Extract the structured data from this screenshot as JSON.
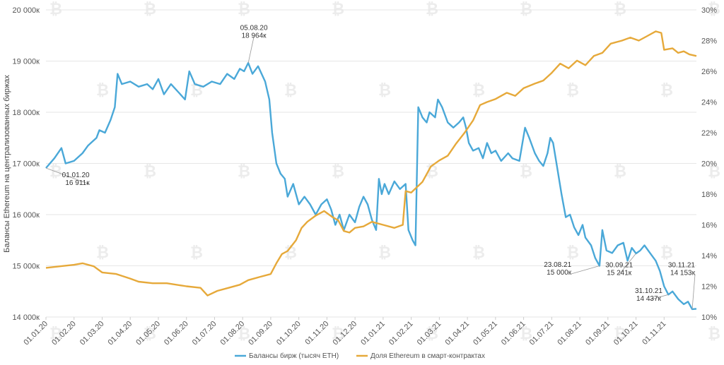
{
  "chart_data": {
    "type": "line",
    "ylabel": "Балансы Ethereum на централизованных биржах",
    "y_left_ticks": [
      "14 000к",
      "15 000к",
      "16 000к",
      "17 000к",
      "18 000к",
      "19 000к",
      "20 000к"
    ],
    "y_left_range": [
      14000,
      20000
    ],
    "y_right_ticks": [
      "10%",
      "12%",
      "14%",
      "16%",
      "18%",
      "20%",
      "22%",
      "24%",
      "26%",
      "28%",
      "30%"
    ],
    "y_right_range": [
      10,
      30
    ],
    "x_tick_labels": [
      "01.01.20",
      "01.02.20",
      "01.03.20",
      "01.04.20",
      "01.05.20",
      "01.06.20",
      "01.07.20",
      "01.08.20",
      "01.09.20",
      "01.10.20",
      "01.11.20",
      "01.12.20",
      "01.01.21",
      "01.02.21",
      "01.03.21",
      "01.04.21",
      "01.05.21",
      "01.06.21",
      "01.07.21",
      "01.08.21",
      "01.09.21",
      "01.10.21",
      "01.11.21"
    ],
    "x_range_months": [
      0,
      23.15
    ],
    "series": [
      {
        "name": "Балансы бирж (тысяч ETH)",
        "axis": "left",
        "color": "#4aa8d8",
        "points": [
          [
            0,
            16911
          ],
          [
            0.3,
            17100
          ],
          [
            0.55,
            17300
          ],
          [
            0.7,
            17000
          ],
          [
            1,
            17050
          ],
          [
            1.3,
            17200
          ],
          [
            1.5,
            17350
          ],
          [
            1.8,
            17500
          ],
          [
            1.9,
            17650
          ],
          [
            2.1,
            17600
          ],
          [
            2.3,
            17850
          ],
          [
            2.45,
            18100
          ],
          [
            2.55,
            18750
          ],
          [
            2.7,
            18550
          ],
          [
            3,
            18600
          ],
          [
            3.3,
            18500
          ],
          [
            3.6,
            18550
          ],
          [
            3.8,
            18450
          ],
          [
            4.0,
            18650
          ],
          [
            4.2,
            18350
          ],
          [
            4.45,
            18550
          ],
          [
            4.7,
            18400
          ],
          [
            4.95,
            18250
          ],
          [
            5.1,
            18800
          ],
          [
            5.3,
            18550
          ],
          [
            5.6,
            18500
          ],
          [
            5.9,
            18600
          ],
          [
            6.2,
            18550
          ],
          [
            6.45,
            18750
          ],
          [
            6.7,
            18650
          ],
          [
            6.9,
            18850
          ],
          [
            7.05,
            18800
          ],
          [
            7.2,
            18964
          ],
          [
            7.35,
            18750
          ],
          [
            7.55,
            18900
          ],
          [
            7.8,
            18600
          ],
          [
            7.95,
            18250
          ],
          [
            8.05,
            17600
          ],
          [
            8.2,
            17000
          ],
          [
            8.35,
            16800
          ],
          [
            8.5,
            16700
          ],
          [
            8.6,
            16350
          ],
          [
            8.8,
            16600
          ],
          [
            9.0,
            16200
          ],
          [
            9.2,
            16350
          ],
          [
            9.4,
            16200
          ],
          [
            9.6,
            16000
          ],
          [
            9.8,
            16200
          ],
          [
            10.0,
            16300
          ],
          [
            10.15,
            16100
          ],
          [
            10.3,
            15800
          ],
          [
            10.45,
            16000
          ],
          [
            10.6,
            15700
          ],
          [
            10.8,
            16000
          ],
          [
            11.0,
            15850
          ],
          [
            11.15,
            16150
          ],
          [
            11.3,
            16350
          ],
          [
            11.45,
            16200
          ],
          [
            11.6,
            15900
          ],
          [
            11.75,
            15700
          ],
          [
            11.85,
            16700
          ],
          [
            11.95,
            16400
          ],
          [
            12.05,
            16600
          ],
          [
            12.2,
            16400
          ],
          [
            12.4,
            16650
          ],
          [
            12.6,
            16500
          ],
          [
            12.8,
            16600
          ],
          [
            12.9,
            15700
          ],
          [
            13.05,
            15500
          ],
          [
            13.15,
            15400
          ],
          [
            13.25,
            18100
          ],
          [
            13.4,
            17900
          ],
          [
            13.55,
            17800
          ],
          [
            13.65,
            18000
          ],
          [
            13.85,
            17900
          ],
          [
            13.95,
            18250
          ],
          [
            14.1,
            18100
          ],
          [
            14.3,
            17800
          ],
          [
            14.5,
            17700
          ],
          [
            14.7,
            17800
          ],
          [
            14.85,
            17900
          ],
          [
            14.95,
            17700
          ],
          [
            15.05,
            17400
          ],
          [
            15.2,
            17250
          ],
          [
            15.4,
            17300
          ],
          [
            15.55,
            17100
          ],
          [
            15.7,
            17400
          ],
          [
            15.85,
            17200
          ],
          [
            16.0,
            17250
          ],
          [
            16.2,
            17050
          ],
          [
            16.45,
            17200
          ],
          [
            16.6,
            17100
          ],
          [
            16.85,
            17050
          ],
          [
            17.05,
            17700
          ],
          [
            17.2,
            17500
          ],
          [
            17.4,
            17200
          ],
          [
            17.55,
            17050
          ],
          [
            17.7,
            16950
          ],
          [
            17.85,
            17200
          ],
          [
            17.95,
            17500
          ],
          [
            18.05,
            17400
          ],
          [
            18.2,
            16900
          ],
          [
            18.35,
            16400
          ],
          [
            18.5,
            15950
          ],
          [
            18.65,
            16000
          ],
          [
            18.8,
            15750
          ],
          [
            18.95,
            15600
          ],
          [
            19.1,
            15800
          ],
          [
            19.2,
            15550
          ],
          [
            19.4,
            15400
          ],
          [
            19.55,
            15150
          ],
          [
            19.7,
            15000
          ],
          [
            19.8,
            15700
          ],
          [
            19.95,
            15300
          ],
          [
            20.15,
            15250
          ],
          [
            20.35,
            15400
          ],
          [
            20.55,
            15450
          ],
          [
            20.7,
            15100
          ],
          [
            20.85,
            15350
          ],
          [
            21.0,
            15241
          ],
          [
            21.15,
            15300
          ],
          [
            21.3,
            15400
          ],
          [
            21.5,
            15250
          ],
          [
            21.7,
            15100
          ],
          [
            21.85,
            14900
          ],
          [
            22.0,
            14600
          ],
          [
            22.15,
            14437
          ],
          [
            22.3,
            14500
          ],
          [
            22.5,
            14350
          ],
          [
            22.7,
            14250
          ],
          [
            22.85,
            14300
          ],
          [
            22.95,
            14200
          ],
          [
            23.0,
            14153
          ],
          [
            23.15,
            14160
          ]
        ]
      },
      {
        "name": "Доля Ethereum в смарт-контрактах",
        "axis": "right",
        "color": "#e6a93a",
        "points": [
          [
            0,
            13.2
          ],
          [
            0.5,
            13.3
          ],
          [
            1.0,
            13.4
          ],
          [
            1.3,
            13.5
          ],
          [
            1.7,
            13.3
          ],
          [
            2.0,
            12.9
          ],
          [
            2.5,
            12.8
          ],
          [
            3.0,
            12.5
          ],
          [
            3.3,
            12.3
          ],
          [
            3.8,
            12.2
          ],
          [
            4.3,
            12.2
          ],
          [
            5.0,
            12.0
          ],
          [
            5.5,
            11.9
          ],
          [
            5.75,
            11.4
          ],
          [
            6.1,
            11.7
          ],
          [
            6.5,
            11.9
          ],
          [
            6.9,
            12.1
          ],
          [
            7.2,
            12.4
          ],
          [
            7.6,
            12.6
          ],
          [
            8.0,
            12.8
          ],
          [
            8.2,
            13.5
          ],
          [
            8.4,
            14.1
          ],
          [
            8.6,
            14.3
          ],
          [
            8.9,
            15.0
          ],
          [
            9.1,
            15.8
          ],
          [
            9.3,
            16.2
          ],
          [
            9.6,
            16.6
          ],
          [
            9.9,
            16.9
          ],
          [
            10.2,
            16.5
          ],
          [
            10.4,
            16.3
          ],
          [
            10.6,
            15.6
          ],
          [
            10.8,
            15.5
          ],
          [
            11.0,
            15.8
          ],
          [
            11.3,
            15.9
          ],
          [
            11.6,
            16.2
          ],
          [
            12.0,
            16.0
          ],
          [
            12.4,
            15.8
          ],
          [
            12.7,
            16.0
          ],
          [
            12.8,
            18.2
          ],
          [
            13.0,
            18.1
          ],
          [
            13.4,
            18.8
          ],
          [
            13.7,
            19.8
          ],
          [
            14.0,
            20.2
          ],
          [
            14.3,
            20.5
          ],
          [
            14.6,
            21.3
          ],
          [
            14.9,
            22.0
          ],
          [
            15.2,
            22.8
          ],
          [
            15.45,
            23.8
          ],
          [
            15.7,
            24.0
          ],
          [
            16.0,
            24.2
          ],
          [
            16.4,
            24.6
          ],
          [
            16.7,
            24.4
          ],
          [
            17.0,
            24.9
          ],
          [
            17.4,
            25.2
          ],
          [
            17.7,
            25.4
          ],
          [
            18.0,
            25.9
          ],
          [
            18.3,
            26.5
          ],
          [
            18.6,
            26.2
          ],
          [
            18.9,
            26.7
          ],
          [
            19.2,
            26.4
          ],
          [
            19.5,
            27.0
          ],
          [
            19.8,
            27.2
          ],
          [
            20.1,
            27.8
          ],
          [
            20.5,
            28.0
          ],
          [
            20.8,
            28.2
          ],
          [
            21.1,
            28.0
          ],
          [
            21.4,
            28.3
          ],
          [
            21.7,
            28.6
          ],
          [
            21.9,
            28.5
          ],
          [
            22.0,
            27.4
          ],
          [
            22.3,
            27.5
          ],
          [
            22.5,
            27.2
          ],
          [
            22.7,
            27.3
          ],
          [
            22.9,
            27.1
          ],
          [
            23.15,
            27.0
          ]
        ]
      }
    ],
    "annotations": [
      {
        "series": 0,
        "x": 0,
        "y": 16911,
        "lines": [
          "01.01.20",
          "16 911к"
        ],
        "label_x": 1.55,
        "label_y": 16620,
        "anchor": "end"
      },
      {
        "series": 0,
        "x": 7.2,
        "y": 18964,
        "lines": [
          "05.08.20",
          "18 964к"
        ],
        "label_x": 7.4,
        "label_y": 19500,
        "anchor": "middle"
      },
      {
        "series": 0,
        "x": 19.7,
        "y": 15000,
        "lines": [
          "23.08.21",
          "15 000к"
        ],
        "label_x": 18.7,
        "label_y": 14870,
        "anchor": "end"
      },
      {
        "series": 0,
        "x": 21.0,
        "y": 15241,
        "lines": [
          "30.09.21",
          "15 241к"
        ],
        "label_x": 20.4,
        "label_y": 14860,
        "anchor": "middle"
      },
      {
        "series": 0,
        "x": 22.15,
        "y": 14437,
        "lines": [
          "31.10.21",
          "14 437к"
        ],
        "label_x": 21.45,
        "label_y": 14360,
        "anchor": "middle"
      },
      {
        "series": 0,
        "x": 23.0,
        "y": 14153,
        "lines": [
          "30.11.21",
          "14 153к"
        ],
        "label_x": 23.1,
        "label_y": 14860,
        "anchor": "end"
      }
    ],
    "legend": [
      "Балансы бирж (тысяч ETH)",
      "Доля Ethereum в смарт-контрактах"
    ],
    "legend_position": "bottom-center",
    "grid": true
  }
}
